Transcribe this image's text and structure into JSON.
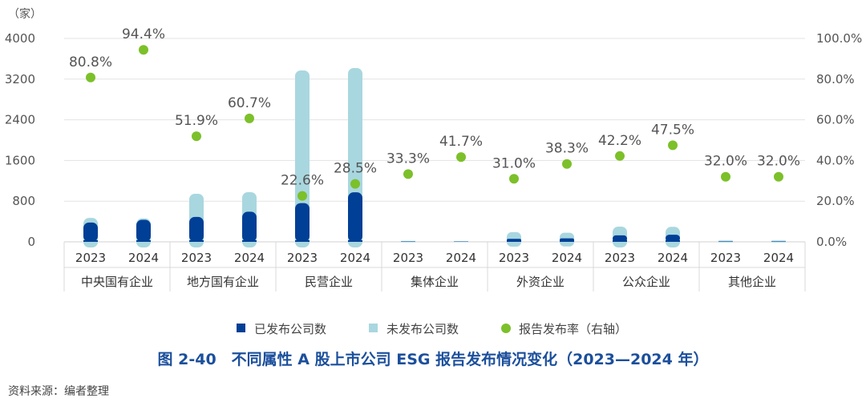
{
  "chart_data": {
    "type": "bar",
    "title": "图 2-40　不同属性 A 股上市公司 ESG 报告发布情况变化（2023—2024 年）",
    "source": "资料来源：编者整理",
    "y_unit_label": "（家）",
    "ylim": [
      0,
      4000
    ],
    "yticks": [
      "0",
      "800",
      "1600",
      "2400",
      "3200",
      "4000"
    ],
    "y2lim": [
      0,
      100
    ],
    "y2ticks": [
      "0.0%",
      "20.0%",
      "40.0%",
      "60.0%",
      "80.0%",
      "100.0%"
    ],
    "grid": true,
    "legend_placement": "bottom",
    "groups": [
      "中央国有企业",
      "地方国有企业",
      "民营企业",
      "集体企业",
      "外资企业",
      "公众企业",
      "其他企业"
    ],
    "years": [
      "2023",
      "2024"
    ],
    "series": [
      {
        "name": "已发布公司数",
        "type": "bar",
        "stack": true,
        "color": "#003f96",
        "values": [
          [
            380,
            434
          ],
          [
            490,
            592
          ],
          [
            762,
            974
          ],
          [
            6,
            5
          ],
          [
            59,
            69
          ],
          [
            127,
            140
          ],
          [
            8,
            8
          ]
        ]
      },
      {
        "name": "未发布公司数",
        "type": "bar",
        "stack": true,
        "color": "#a9d7df",
        "values": [
          [
            90,
            26
          ],
          [
            455,
            384
          ],
          [
            2608,
            2443
          ],
          [
            12,
            7
          ],
          [
            131,
            111
          ],
          [
            173,
            155
          ],
          [
            17,
            17
          ]
        ]
      },
      {
        "name": "报告发布率（右轴）",
        "type": "scatter",
        "axis": "right",
        "color": "#7cc02a",
        "values": [
          [
            80.8,
            94.4
          ],
          [
            51.9,
            60.7
          ],
          [
            22.6,
            28.5
          ],
          [
            33.3,
            41.7
          ],
          [
            31.0,
            38.3
          ],
          [
            42.2,
            47.5
          ],
          [
            32.0,
            32.0
          ]
        ],
        "labels": [
          [
            "80.8%",
            "94.4%"
          ],
          [
            "51.9%",
            "60.7%"
          ],
          [
            "22.6%",
            "28.5%"
          ],
          [
            "33.3%",
            "41.7%"
          ],
          [
            "31.0%",
            "38.3%"
          ],
          [
            "42.2%",
            "47.5%"
          ],
          [
            "32.0%",
            "32.0%"
          ]
        ]
      }
    ]
  }
}
